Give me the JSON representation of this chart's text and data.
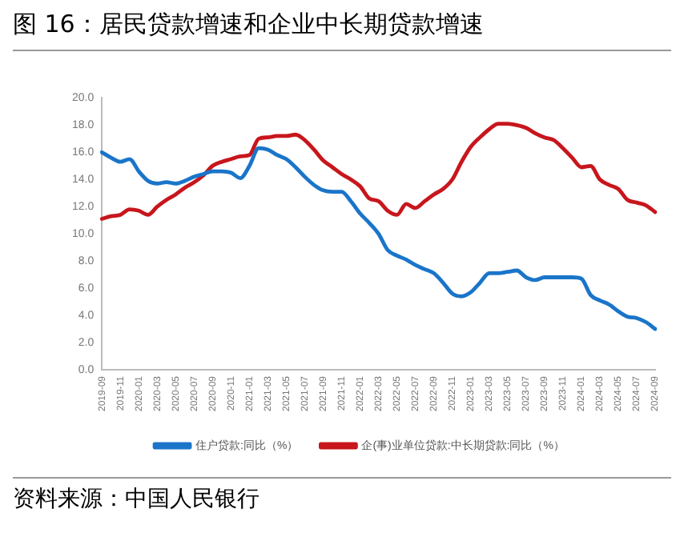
{
  "chart_data": {
    "type": "line",
    "title": "图 16：居民贷款增速和企业中长期贷款增速",
    "annotations": [
      "资料来源：中国人民银行"
    ],
    "categories": [
      "2019-09",
      null,
      "2019-11",
      null,
      "2020-01",
      null,
      "2020-03",
      null,
      "2020-05",
      null,
      "2020-07",
      null,
      "2020-09",
      null,
      "2020-11",
      null,
      "2021-01",
      null,
      "2021-03",
      null,
      "2021-05",
      null,
      "2021-07",
      null,
      "2021-09",
      null,
      "2021-11",
      null,
      "2022-01",
      null,
      "2022-03",
      null,
      "2022-05",
      null,
      "2022-07",
      null,
      "2022-09",
      null,
      "2022-11",
      null,
      "2023-01",
      null,
      "2023-03",
      null,
      "2023-05",
      null,
      "2023-07",
      null,
      "2023-09",
      null,
      "2023-11",
      null,
      "2024-01",
      null,
      "2024-03",
      null,
      "2024-05",
      null,
      "2024-07",
      null,
      "2024-09"
    ],
    "series": [
      {
        "name": "住户贷款:同比（%）",
        "color": "#1a75c9",
        "values": [
          16.0,
          15.6,
          15.3,
          15.5,
          14.6,
          13.9,
          13.7,
          13.8,
          13.7,
          13.9,
          14.2,
          14.4,
          14.6,
          14.6,
          14.5,
          14.1,
          15.0,
          16.3,
          16.2,
          15.8,
          15.5,
          14.9,
          14.2,
          13.6,
          13.2,
          13.1,
          13.1,
          12.4,
          11.5,
          10.8,
          10.0,
          8.8,
          8.4,
          8.1,
          7.7,
          7.4,
          7.1,
          6.4,
          5.6,
          5.4,
          5.7,
          6.4,
          7.1,
          7.1,
          7.2,
          7.3,
          6.8,
          6.6,
          6.8,
          6.8,
          6.8,
          6.8,
          6.7,
          5.5,
          5.1,
          4.8,
          4.3,
          3.9,
          3.8,
          3.5,
          3.0
        ]
      },
      {
        "name": "企(事)业单位贷款:中长期贷款:同比（%）",
        "color": "#c8161d",
        "values": [
          11.1,
          11.3,
          11.4,
          11.8,
          11.7,
          11.4,
          12.0,
          12.5,
          12.9,
          13.4,
          13.8,
          14.3,
          15.0,
          15.3,
          15.5,
          15.7,
          15.8,
          17.0,
          17.1,
          17.2,
          17.2,
          17.3,
          16.9,
          16.2,
          15.4,
          14.9,
          14.4,
          14.0,
          13.5,
          12.6,
          12.4,
          11.7,
          11.4,
          12.2,
          11.9,
          12.4,
          12.9,
          13.3,
          14.0,
          15.3,
          16.4,
          17.1,
          17.7,
          18.1,
          18.1,
          18.0,
          17.8,
          17.4,
          17.1,
          16.9,
          16.3,
          15.6,
          14.9,
          15.0,
          14.0,
          13.6,
          13.3,
          12.5,
          12.3,
          12.1,
          11.6
        ]
      }
    ],
    "ylim": [
      0,
      20
    ],
    "yticks": [
      {
        "value": 0,
        "label": "0.0"
      },
      {
        "value": 2,
        "label": "2.0"
      },
      {
        "value": 4,
        "label": "4.0"
      },
      {
        "value": 6,
        "label": "6.0"
      },
      {
        "value": 8,
        "label": "8.0"
      },
      {
        "value": 10,
        "label": "10.0"
      },
      {
        "value": 12,
        "label": "12.0"
      },
      {
        "value": 14,
        "label": "14.0"
      },
      {
        "value": 16,
        "label": "16.0"
      },
      {
        "value": 18,
        "label": "18.0"
      },
      {
        "value": 20,
        "label": "20.0"
      }
    ],
    "grid": false,
    "legend": "bottom",
    "marker": "none",
    "line_style": "solid"
  }
}
